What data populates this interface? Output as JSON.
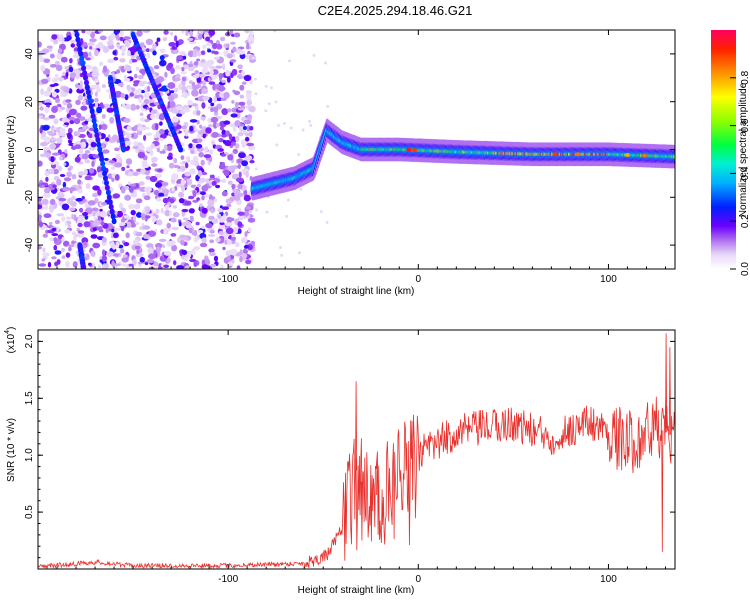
{
  "title": "C2E4.2025.294.18.46.G21",
  "chart_data": [
    {
      "type": "heatmap",
      "name": "spectrogram",
      "xlabel": "Height of straight line (km)",
      "ylabel": "Frequency (Hz)",
      "xlim": [
        -200,
        135
      ],
      "ylim": [
        -50,
        50
      ],
      "xticks": [
        -100,
        0,
        100
      ],
      "yticks": [
        -40,
        -20,
        0,
        20,
        40
      ],
      "colorbar": {
        "label": "Normalized spectral amplitude",
        "range": [
          0,
          1
        ],
        "ticks": [
          0.0,
          0.2,
          0.4,
          0.6,
          0.8
        ]
      },
      "ridge": {
        "description_points": [
          {
            "x": -85,
            "y": -16
          },
          {
            "x": -75,
            "y": -14
          },
          {
            "x": -65,
            "y": -12
          },
          {
            "x": -55,
            "y": -8
          },
          {
            "x": -48,
            "y": 8
          },
          {
            "x": -40,
            "y": 3
          },
          {
            "x": -30,
            "y": 0
          },
          {
            "x": -10,
            "y": 0
          },
          {
            "x": 20,
            "y": -1
          },
          {
            "x": 60,
            "y": -2
          },
          {
            "x": 100,
            "y": -2
          },
          {
            "x": 135,
            "y": -3
          }
        ]
      }
    },
    {
      "type": "line",
      "name": "snr",
      "xlabel": "Height of straight line (km)",
      "ylabel": "SNR (10 * v/v)",
      "yscale_label": "(x10",
      "yscale_exp": "4",
      "xlim": [
        -200,
        135
      ],
      "ylim": [
        0,
        2.1
      ],
      "xticks": [
        -100,
        0,
        100
      ],
      "yticks": [
        0.5,
        1.0,
        1.5,
        2.0
      ],
      "ytick_labels": [
        "0.5",
        "1.0",
        "1.5",
        "2.0"
      ],
      "color": "#e8302c",
      "envelope": [
        {
          "x": -200,
          "y": 0.02
        },
        {
          "x": -170,
          "y": 0.06
        },
        {
          "x": -150,
          "y": 0.03
        },
        {
          "x": -100,
          "y": 0.03
        },
        {
          "x": -60,
          "y": 0.05
        },
        {
          "x": -48,
          "y": 0.12
        },
        {
          "x": -40,
          "y": 0.35
        },
        {
          "x": -34,
          "y": 0.9
        },
        {
          "x": -25,
          "y": 0.6
        },
        {
          "x": -10,
          "y": 0.85
        },
        {
          "x": 0,
          "y": 1.0
        },
        {
          "x": 20,
          "y": 1.2
        },
        {
          "x": 50,
          "y": 1.28
        },
        {
          "x": 70,
          "y": 1.15
        },
        {
          "x": 90,
          "y": 1.3
        },
        {
          "x": 110,
          "y": 1.1
        },
        {
          "x": 125,
          "y": 1.25
        },
        {
          "x": 135,
          "y": 1.15
        }
      ],
      "spikes": [
        {
          "x": -33,
          "y": 1.65
        },
        {
          "x": -30,
          "y": 0.25
        },
        {
          "x": -22,
          "y": 1.0
        },
        {
          "x": 128,
          "y": 0.15
        },
        {
          "x": 130,
          "y": 2.07
        },
        {
          "x": 132,
          "y": 1.95
        }
      ]
    }
  ]
}
